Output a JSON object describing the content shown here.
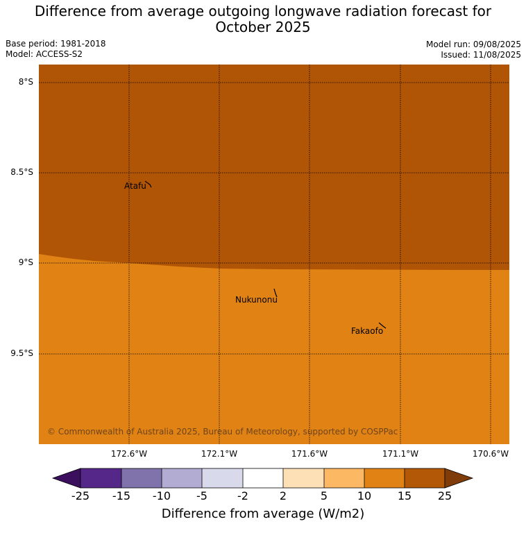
{
  "title_line1": "Difference from average outgoing longwave radiation forecast for",
  "title_line2": "October 2025",
  "base_period": "Base period: 1981-2018",
  "model": "Model: ACCESS-S2",
  "model_run": "Model run: 09/08/2025",
  "issued": "Issued: 11/08/2025",
  "lat_labels": [
    "8°S",
    "8.5°S",
    "9°S",
    "9.5°S"
  ],
  "lon_labels": [
    "172.6°W",
    "172.1°W",
    "171.6°W",
    "171.1°W",
    "170.6°W"
  ],
  "places": [
    "Atafu",
    "Nukunonu",
    "Fakaofo"
  ],
  "copyright": "© Commonwealth of Australia 2025, Bureau of Meteorology, supported by COSPPac",
  "colorbar": {
    "ticks": [
      "-25",
      "-15",
      "-10",
      "-5",
      "-2",
      "2",
      "5",
      "10",
      "15",
      "25"
    ],
    "colors": [
      "#3b0f5e",
      "#542788",
      "#8073ac",
      "#b2abd2",
      "#d8daeb",
      "#ffffff",
      "#fee0b6",
      "#fdb863",
      "#e08214",
      "#b35806",
      "#7f3b08"
    ],
    "label": "Difference from average (W/m2)"
  },
  "map_colors": {
    "upper": "#b05405",
    "lower": "#e08214"
  }
}
